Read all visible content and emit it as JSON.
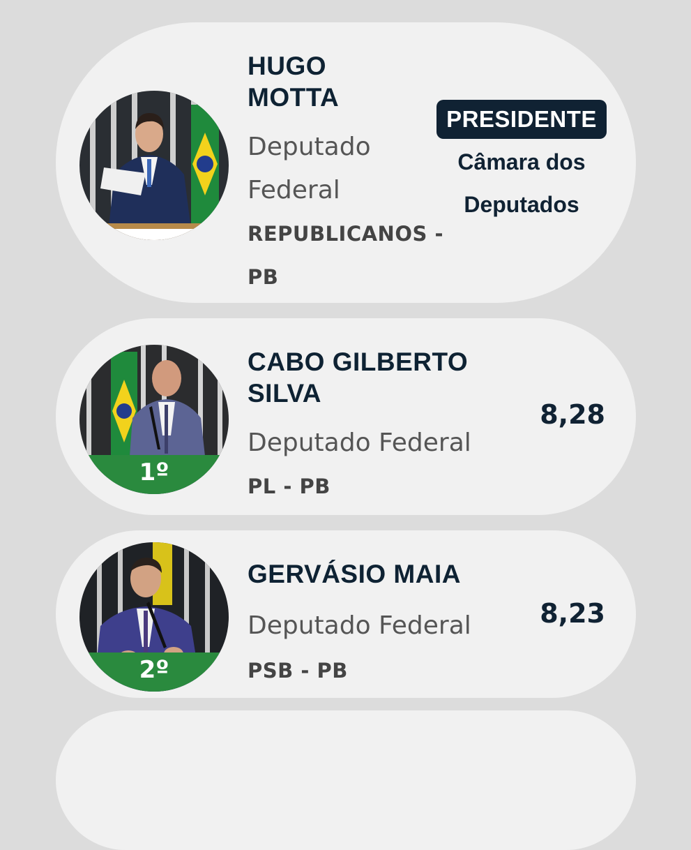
{
  "colors": {
    "background": "#dcdcdc",
    "card": "#f1f1f1",
    "navy": "#102233",
    "rank_green": "#2a8a3e"
  },
  "cards": [
    {
      "name": "HUGO MOTTA",
      "role": "Deputado Federal",
      "party": "REPUBLICANOS - PB",
      "badge": "PRESIDENTE",
      "house": "Câmara dos Deputados"
    },
    {
      "name": "CABO GILBERTO SILVA",
      "role": "Deputado Federal",
      "party": "PL - PB",
      "rank": "1º",
      "score": "8,28"
    },
    {
      "name": "GERVÁSIO MAIA",
      "role": "Deputado Federal",
      "party": "PSB - PB",
      "rank": "2º",
      "score": "8,23"
    }
  ]
}
